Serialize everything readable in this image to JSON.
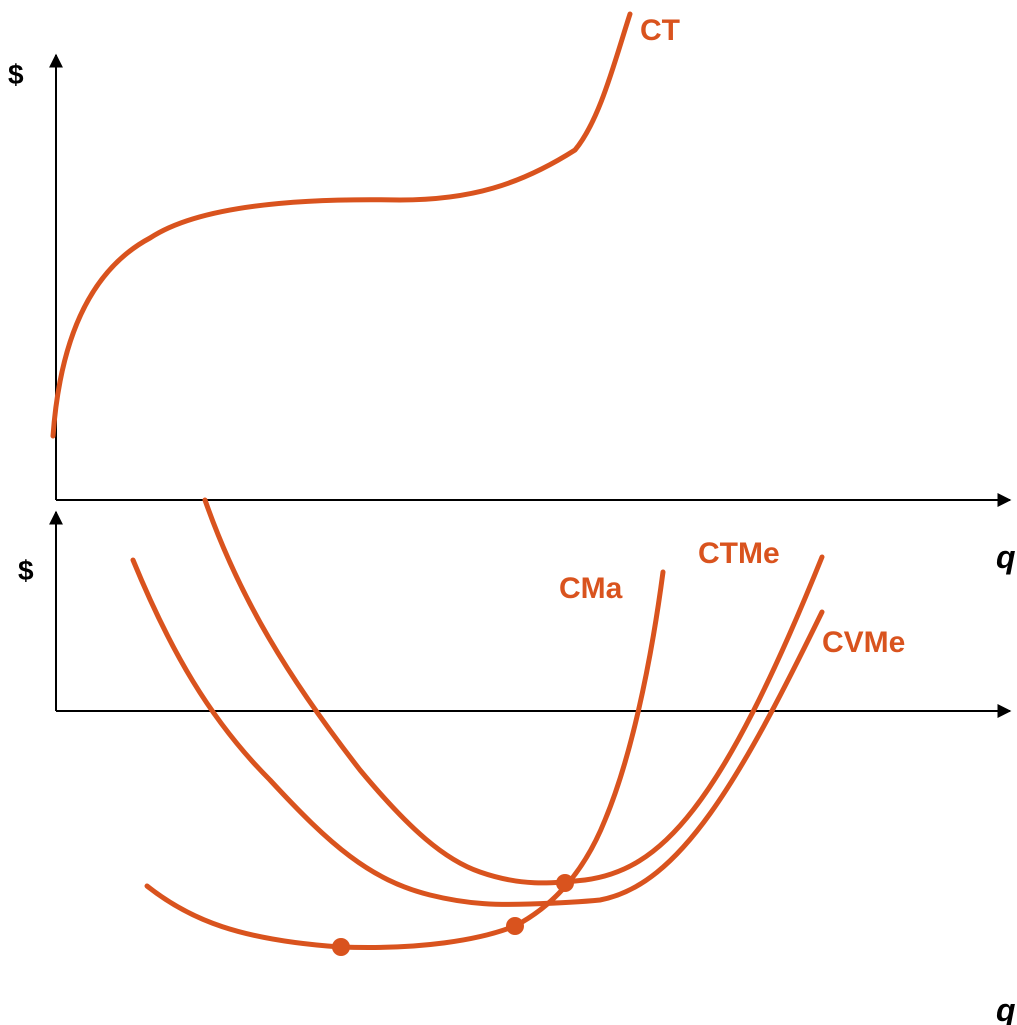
{
  "colors": {
    "curve": "#D9531E",
    "axis": "#000000",
    "background": "#FFFFFF"
  },
  "top_panel": {
    "y_axis_label": "$",
    "x_axis_label": "q",
    "curves": {
      "ct": "CT"
    }
  },
  "bottom_panel": {
    "y_axis_label": "$",
    "x_axis_label": "q",
    "curves": {
      "cma": "CMa",
      "ctme": "CTMe",
      "cvme": "CVMe"
    }
  }
}
